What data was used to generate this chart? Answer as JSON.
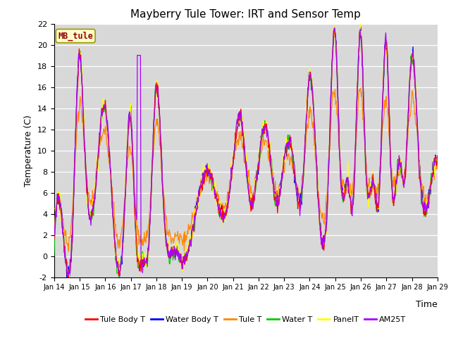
{
  "title": "Mayberry Tule Tower: IRT and Sensor Temp",
  "xlabel": "Time",
  "ylabel": "Temperature (C)",
  "ylim": [
    -2,
    22
  ],
  "yticks": [
    -2,
    0,
    2,
    4,
    6,
    8,
    10,
    12,
    14,
    16,
    18,
    20,
    22
  ],
  "x_labels": [
    "Jan 14",
    "Jan 15",
    "Jan 16",
    "Jan 17",
    "Jan 18",
    "Jan 19",
    "Jan 20",
    "Jan 21",
    "Jan 22",
    "Jan 23",
    "Jan 24",
    "Jan 25",
    "Jan 26",
    "Jan 27",
    "Jan 28",
    "Jan 29"
  ],
  "station_label": "MB_tule",
  "legend_entries": [
    {
      "label": "Tule Body T",
      "color": "#ff0000"
    },
    {
      "label": "Water Body T",
      "color": "#0000ff"
    },
    {
      "label": "Tule T",
      "color": "#ff8800"
    },
    {
      "label": "Water T",
      "color": "#00cc00"
    },
    {
      "label": "PanelT",
      "color": "#ffff00"
    },
    {
      "label": "AM25T",
      "color": "#aa00ff"
    }
  ],
  "background_color": "#d8d8d8",
  "title_fontsize": 11,
  "label_fontsize": 9,
  "tick_fontsize": 8
}
